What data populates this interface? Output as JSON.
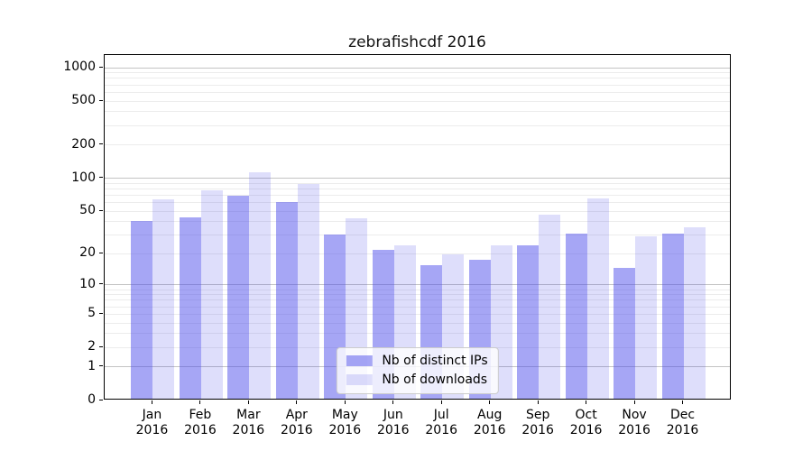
{
  "title": "zebrafishcdf 2016",
  "chart_data": {
    "type": "bar",
    "title": "zebrafishcdf 2016",
    "categories": [
      "Jan",
      "Feb",
      "Mar",
      "Apr",
      "May",
      "Jun",
      "Jul",
      "Aug",
      "Sep",
      "Oct",
      "Nov",
      "Dec"
    ],
    "year_label": "2016",
    "series": [
      {
        "name": "Nb of distinct IPs",
        "color": "rgba(70,70,235,0.48)",
        "values": [
          39,
          42,
          66,
          58,
          29,
          21,
          15,
          17,
          23,
          30,
          14,
          30
        ]
      },
      {
        "name": "Nb of downloads",
        "color": "rgba(70,70,235,0.18)",
        "values": [
          62,
          74,
          108,
          85,
          41,
          23,
          19,
          23,
          45,
          63,
          28,
          34
        ]
      }
    ],
    "yscale": "log1p",
    "ylim": [
      0,
      1300
    ],
    "yticks": [
      0,
      1,
      2,
      5,
      10,
      20,
      50,
      100,
      200,
      500,
      1000
    ],
    "major_gridlines": [
      1,
      10,
      100,
      1000
    ],
    "minor_gridlines": [
      2,
      3,
      4,
      5,
      6,
      7,
      8,
      9,
      20,
      30,
      40,
      50,
      60,
      70,
      80,
      90,
      200,
      300,
      400,
      500,
      600,
      700,
      800,
      900
    ],
    "grid": true,
    "legend_position": "lower center"
  },
  "colors": {
    "major_grid": "#c3c3c3",
    "minor_grid": "#ececec",
    "axis": "#000000"
  }
}
